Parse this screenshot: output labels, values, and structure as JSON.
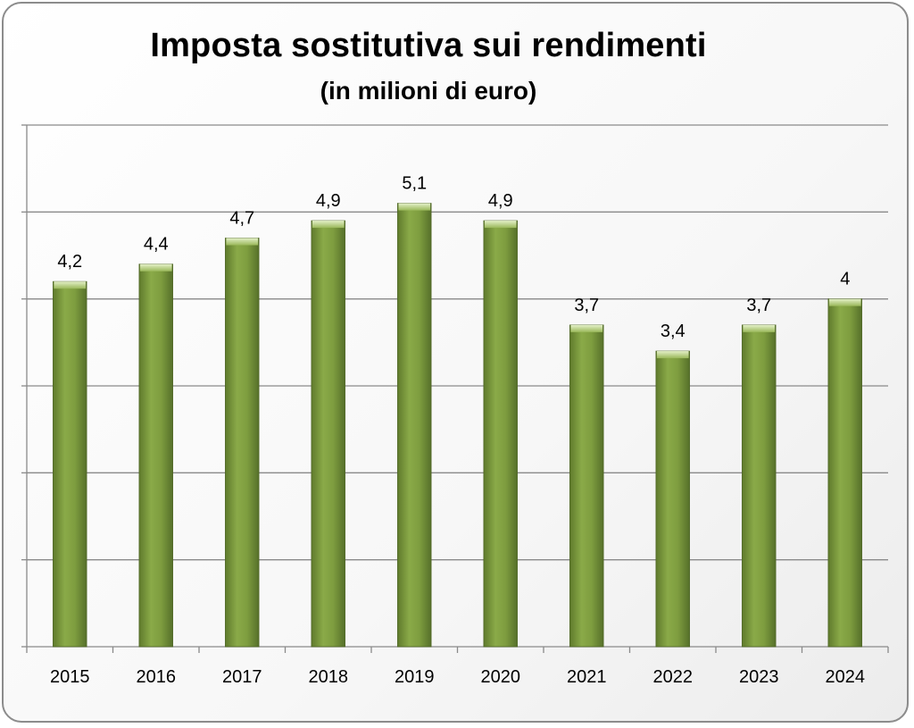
{
  "chart_data": {
    "type": "bar",
    "title": "Imposta sostitutiva sui rendimenti",
    "subtitle": "(in milioni di euro)",
    "categories": [
      "2015",
      "2016",
      "2017",
      "2018",
      "2019",
      "2020",
      "2021",
      "2022",
      "2023",
      "2024"
    ],
    "values": [
      4.2,
      4.4,
      4.7,
      4.9,
      5.1,
      4.9,
      3.7,
      3.4,
      3.7,
      4
    ],
    "data_labels": [
      "4,2",
      "4,4",
      "4,7",
      "4,9",
      "5,1",
      "4,9",
      "3,7",
      "3,4",
      "3,7",
      "4"
    ],
    "ylim": [
      0,
      6
    ],
    "grid": true,
    "bar_color": "#77933c",
    "bar_highlight": "#c3d69b"
  }
}
